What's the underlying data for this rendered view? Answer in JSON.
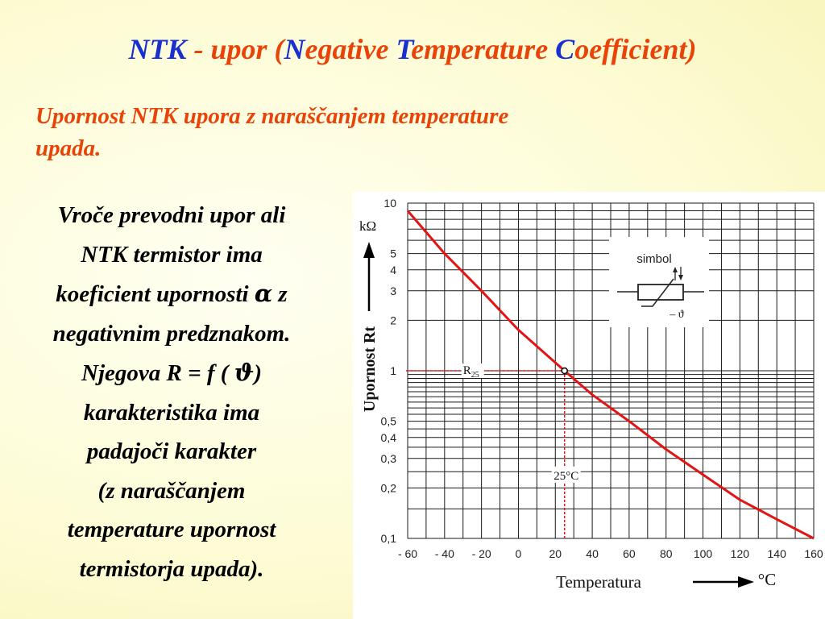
{
  "slide": {
    "title_parts": [
      {
        "text": "NTK",
        "color": "blue"
      },
      {
        "text": " - upor (",
        "color": "red"
      },
      {
        "text": "N",
        "color": "blue"
      },
      {
        "text": "egative ",
        "color": "red"
      },
      {
        "text": "T",
        "color": "blue"
      },
      {
        "text": "emperature ",
        "color": "red"
      },
      {
        "text": "C",
        "color": "blue"
      },
      {
        "text": "oefficient)",
        "color": "red"
      }
    ],
    "subtitle_line1": "Upornost NTK upora z naraščanjem temperature",
    "subtitle_line2": "upada.",
    "body": {
      "line1": "Vroče prevodni upor ali",
      "line2": "NTK termistor ima",
      "line3_pre": "koeficient upornosti ",
      "line3_alpha": "α",
      "line3_post": " z",
      "line4": "negativnim predznakom.",
      "line5_pre": "Njegova ",
      "line5_formula": "R = f  ( ",
      "line5_theta": "ϑ",
      "line5_post": ")",
      "line6": "karakteristika ima",
      "line7": "padajoči karakter",
      "line8": "(z naraščanjem",
      "line9": "temperature upornost",
      "line10": "termistorja upada)."
    }
  },
  "colors": {
    "title_blue": "#1a2fcf",
    "title_red": "#e8440a",
    "curve": "#e41414",
    "grid": "#1a1a1a"
  },
  "chart_data": {
    "type": "line",
    "xlabel": "Temperatura",
    "x_unit": "°C",
    "ylabel": "Upornost Rt",
    "y_unit": "kΩ",
    "y_scale": "log",
    "xlim": [
      -60,
      160
    ],
    "ylim": [
      0.1,
      10
    ],
    "x_ticks": [
      -60,
      -40,
      -20,
      0,
      20,
      40,
      60,
      80,
      100,
      120,
      140,
      160
    ],
    "x_tick_labels": [
      "- 60",
      "- 40",
      "- 20",
      "0",
      "20",
      "40",
      "60",
      "80",
      "100",
      "120",
      "140",
      "160"
    ],
    "y_ticks": [
      0.1,
      0.2,
      0.3,
      0.4,
      0.5,
      1,
      2,
      3,
      4,
      5,
      10
    ],
    "y_tick_labels": [
      "0,1",
      "0,2",
      "0,3",
      "0,4",
      "0,5",
      "1",
      "2",
      "3",
      "4",
      "5",
      "10"
    ],
    "grid": true,
    "series": [
      {
        "x": [
          -60,
          -40,
          -20,
          0,
          25,
          40,
          60,
          80,
          100,
          120,
          140,
          160
        ],
        "y": [
          9.0,
          5.0,
          3.0,
          1.75,
          1.0,
          0.72,
          0.5,
          0.34,
          0.24,
          0.17,
          0.13,
          0.1
        ]
      }
    ],
    "annotations": [
      {
        "text": "R",
        "sub": "25",
        "x": 25,
        "y": 1
      },
      {
        "text": "25°C",
        "x": 25,
        "y": 0.235
      }
    ],
    "inset": {
      "label": "simbol",
      "caption": "– ϑ"
    }
  }
}
